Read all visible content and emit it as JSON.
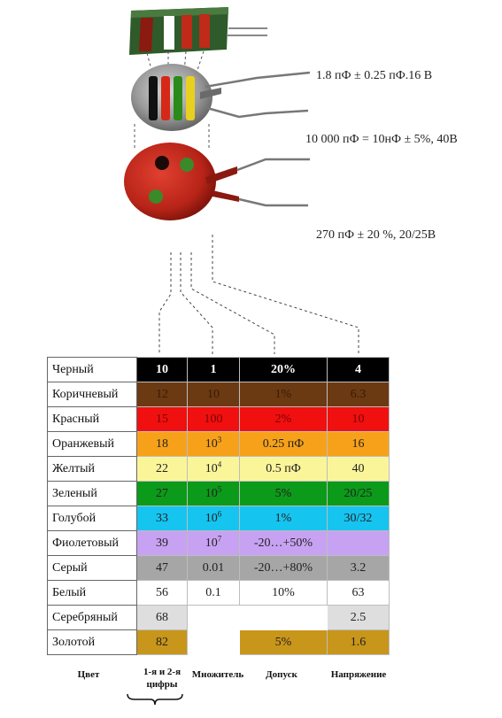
{
  "captions": {
    "cap1": "1.8 пФ ± 0.25 пФ.16 В",
    "cap2": "10 000 пФ = 10нФ ± 5%, 40В",
    "cap3": "270 пФ ± 20 %, 20/25В"
  },
  "table": {
    "rows": [
      {
        "name": "Черный",
        "bg": "#000000",
        "fg": "#ffffff",
        "bold": true,
        "d": "10",
        "m": "1",
        "t": "20%",
        "v": "4"
      },
      {
        "name": "Коричневый",
        "bg": "#6b3a12",
        "fg": "#3a1a06",
        "d": "12",
        "m": "10",
        "t": "1%",
        "v": "6.3"
      },
      {
        "name": "Красный",
        "bg": "#f01010",
        "fg": "#7a0000",
        "d": "15",
        "m": "100",
        "t": "2%",
        "v": "10"
      },
      {
        "name": "Оранжевый",
        "bg": "#f7a11a",
        "fg": "#222222",
        "d": "18",
        "m": "10",
        "mexp": "3",
        "t": "0.25 пФ",
        "v": "16"
      },
      {
        "name": "Желтый",
        "bg": "#fbf59a",
        "fg": "#222222",
        "d": "22",
        "m": "10",
        "mexp": "4",
        "t": "0.5 пФ",
        "v": "40"
      },
      {
        "name": "Зеленый",
        "bg": "#0c9a1a",
        "fg": "#222222",
        "d": "27",
        "m": "10",
        "mexp": "5",
        "t": "5%",
        "v": "20/25"
      },
      {
        "name": "Голубой",
        "bg": "#16c4f0",
        "fg": "#222222",
        "d": "33",
        "m": "10",
        "mexp": "6",
        "t": "1%",
        "v": "30/32"
      },
      {
        "name": "Фиолетовый",
        "bg": "#c7a2f2",
        "fg": "#222222",
        "d": "39",
        "m": "10",
        "mexp": "7",
        "t": "-20…+50%",
        "v": ""
      },
      {
        "name": "Серый",
        "bg": "#a6a6a6",
        "fg": "#222222",
        "d": "47",
        "m": "0.01",
        "t": "-20…+80%",
        "v": "3.2"
      },
      {
        "name": "Белый",
        "bg": "#ffffff",
        "fg": "#222222",
        "d": "56",
        "m": "0.1",
        "t": "10%",
        "v": "63"
      },
      {
        "name": "Серебряный",
        "bg": "#dedede",
        "fg": "#222222",
        "d": "68",
        "m": "",
        "t": "",
        "v": "2.5",
        "mEmpty": true,
        "tEmpty": true
      },
      {
        "name": "Золотой",
        "bg": "#c8961a",
        "fg": "#222222",
        "d": "82",
        "m": "",
        "t": "5%",
        "v": "1.6",
        "mEmpty": true
      }
    ]
  },
  "footer": {
    "color": "Цвет",
    "digits_line1": "1-я и 2-я",
    "digits_line2": "цифры",
    "multiplier": "Множитель",
    "tolerance": "Допуск",
    "voltage": "Напряжение"
  }
}
